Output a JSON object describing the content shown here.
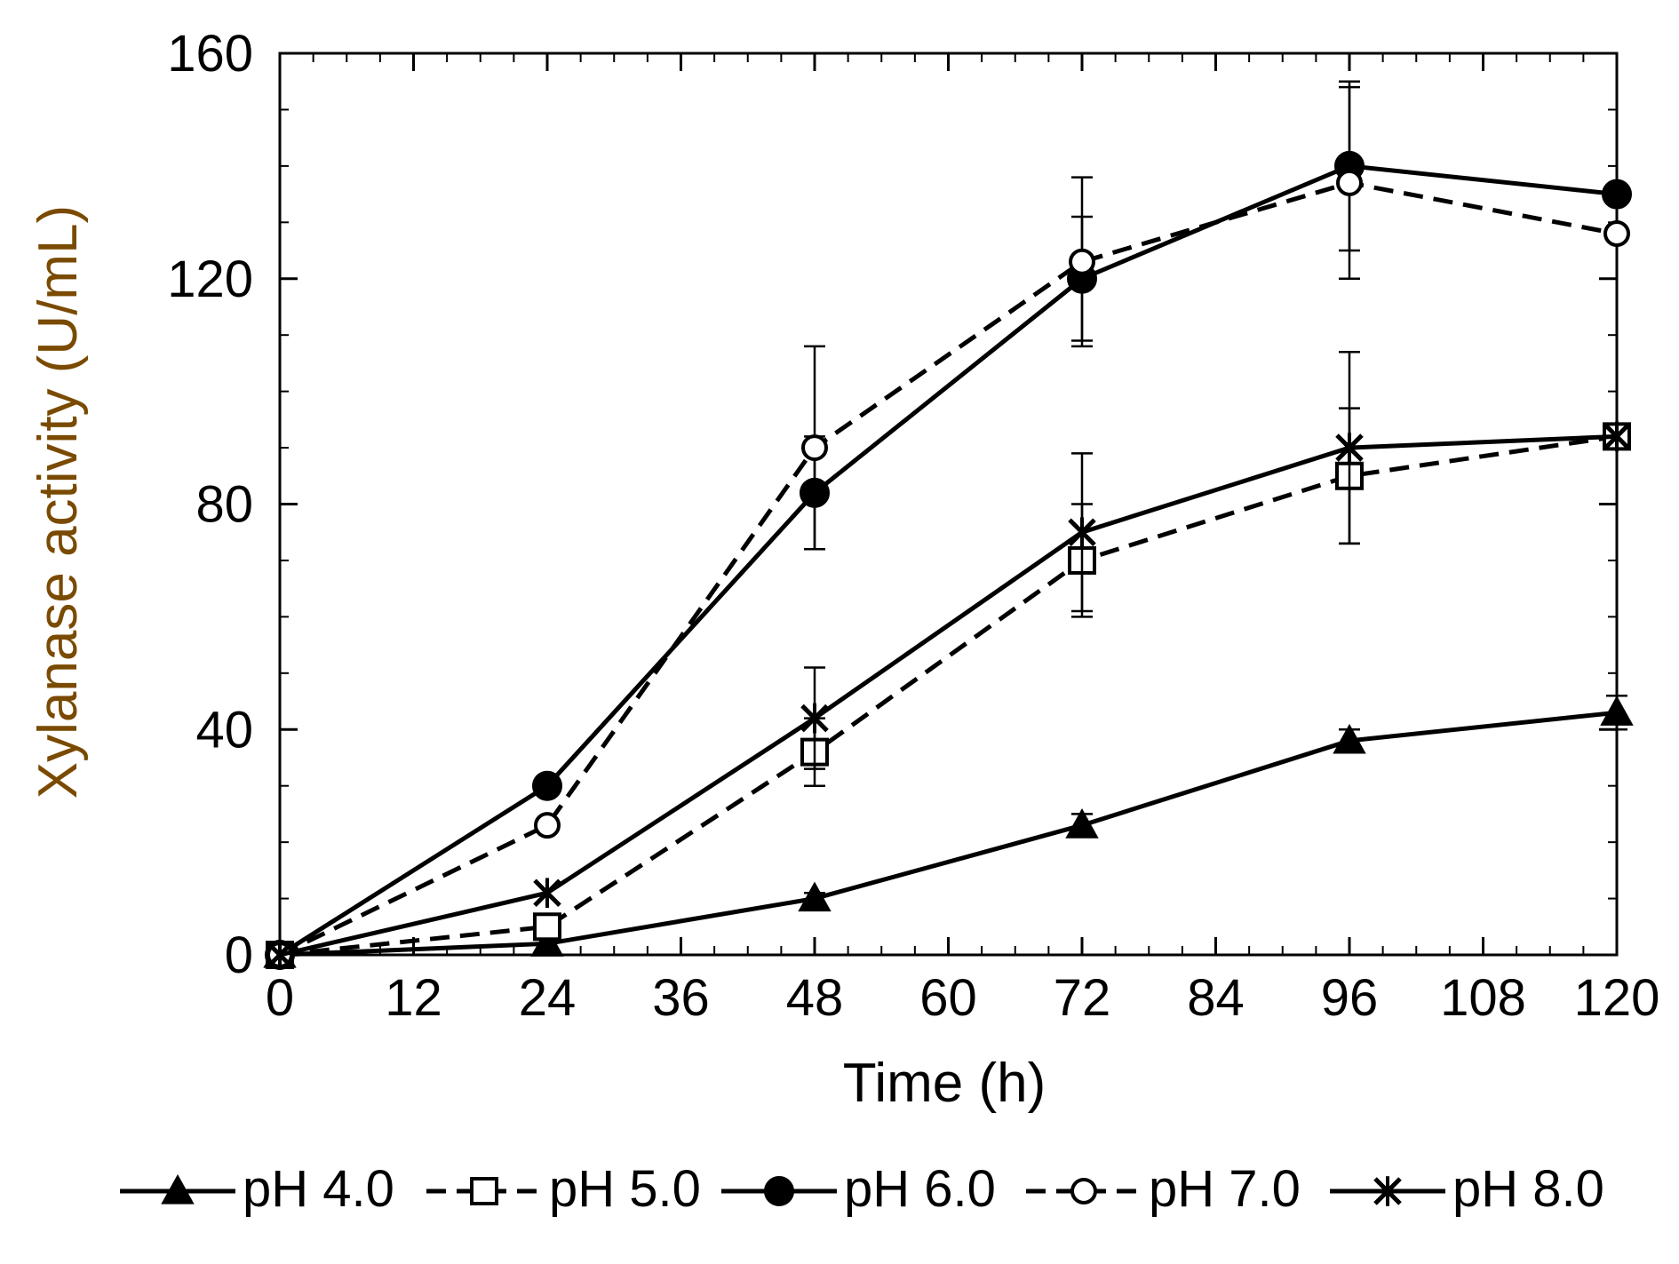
{
  "chart_data": {
    "type": "line",
    "xlabel": "Time (h)",
    "ylabel": "Xylanase activity (U/mL)",
    "xlim": [
      0,
      120
    ],
    "ylim": [
      0,
      160
    ],
    "x_ticks": [
      0,
      12,
      24,
      36,
      48,
      60,
      72,
      84,
      96,
      108,
      120
    ],
    "y_ticks": [
      0,
      40,
      80,
      120,
      160
    ],
    "x_tick_labels": [
      "0",
      "12",
      "24",
      "36",
      "48",
      "60",
      "72",
      "84",
      "96",
      "108",
      "120"
    ],
    "y_tick_labels": [
      "0",
      "40",
      "80",
      "120",
      "160"
    ],
    "grid": false,
    "legend_position": "bottom",
    "x": [
      0,
      24,
      48,
      72,
      96,
      120
    ],
    "series": [
      {
        "name": "pH 4.0",
        "marker": "triangle-filled",
        "dash": false,
        "values": [
          0,
          2,
          10,
          23,
          38,
          43
        ],
        "errors": [
          0,
          0,
          1,
          2,
          2,
          3
        ]
      },
      {
        "name": "pH 5.0",
        "marker": "square-open",
        "dash": true,
        "values": [
          0,
          5,
          36,
          70,
          85,
          92
        ],
        "errors": [
          0,
          1,
          6,
          10,
          12,
          0
        ]
      },
      {
        "name": "pH 6.0",
        "marker": "circle-filled",
        "dash": false,
        "values": [
          0,
          30,
          82,
          120,
          140,
          135
        ],
        "errors": [
          0,
          0,
          10,
          11,
          15,
          0
        ]
      },
      {
        "name": "pH 7.0",
        "marker": "circle-open",
        "dash": true,
        "values": [
          0,
          23,
          90,
          123,
          137,
          128
        ],
        "errors": [
          0,
          0,
          18,
          15,
          17,
          0
        ]
      },
      {
        "name": "pH 8.0",
        "marker": "star",
        "dash": false,
        "values": [
          0,
          11,
          42,
          75,
          90,
          92
        ],
        "errors": [
          0,
          0,
          9,
          14,
          17,
          0
        ]
      }
    ]
  }
}
